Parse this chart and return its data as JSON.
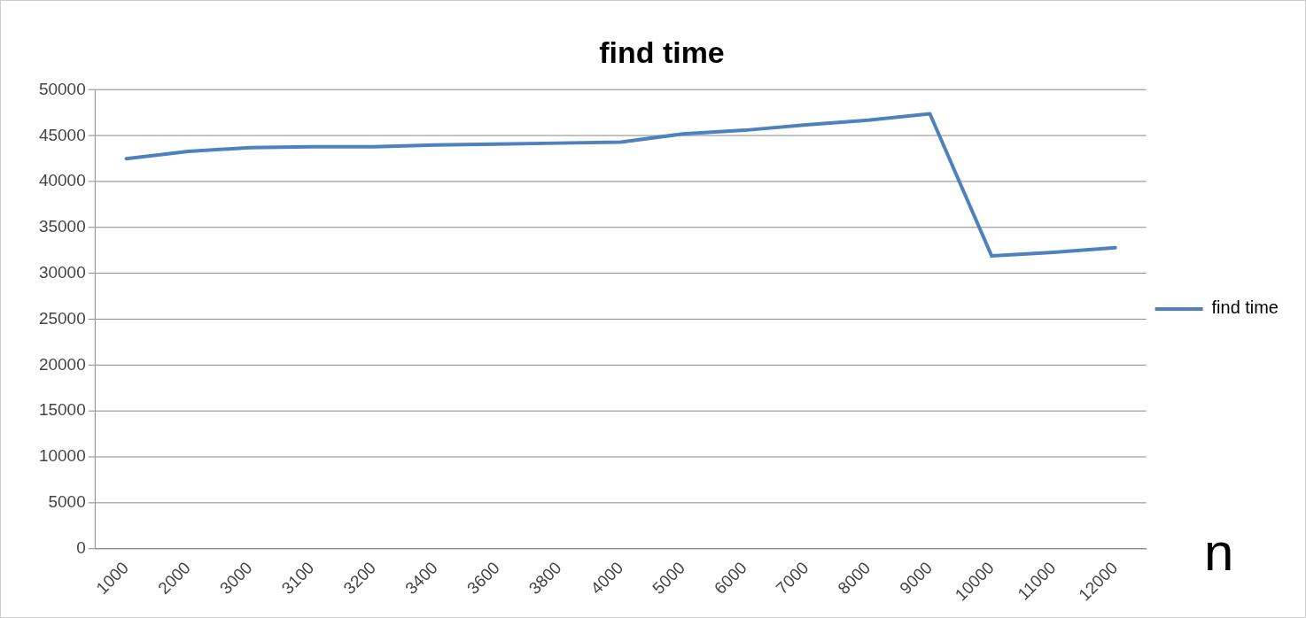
{
  "chart_data": {
    "type": "line",
    "title": "find time",
    "xlabel": "n",
    "categories": [
      "1000",
      "2000",
      "3000",
      "3100",
      "3200",
      "3400",
      "3600",
      "3800",
      "4000",
      "5000",
      "6000",
      "7000",
      "8000",
      "9000",
      "10000",
      "11000",
      "12000"
    ],
    "series": [
      {
        "name": "find time",
        "color": "#4f81bd",
        "values": [
          42500,
          43300,
          43700,
          43800,
          43800,
          44000,
          44100,
          44200,
          44300,
          45200,
          45600,
          46200,
          46700,
          47400,
          31900,
          32300,
          32800
        ]
      }
    ],
    "ylim": [
      0,
      50000
    ],
    "yticks": [
      0,
      5000,
      10000,
      15000,
      20000,
      25000,
      30000,
      35000,
      40000,
      45000,
      50000
    ],
    "grid": "y",
    "legend": "right",
    "marker": "none",
    "line_style": "solid"
  }
}
